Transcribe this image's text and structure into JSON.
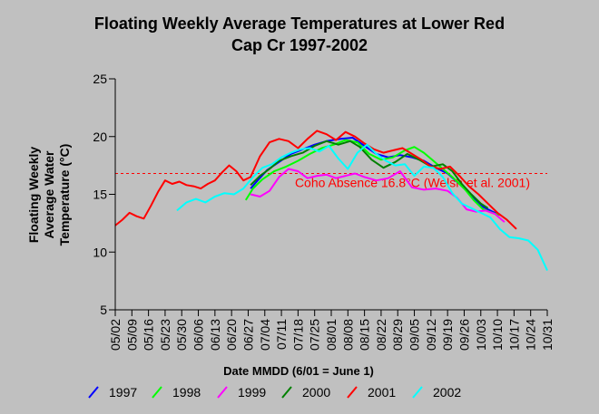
{
  "chart_data": {
    "type": "line",
    "title_lines": [
      "Floating Weekly Average Temperatures at Lower Red",
      "Cap Cr 1997-2002"
    ],
    "ylabel_lines": [
      "Floating Weekly",
      "Average Water",
      "Temperature (°C)"
    ],
    "xlabel": "Date MMDD (6/01 = June 1)",
    "ylim": [
      5,
      25
    ],
    "yticks": [
      5,
      10,
      15,
      20,
      25
    ],
    "x_start_label": "05/02",
    "x_end_label": "10/31",
    "xtick_labels": [
      "05/02",
      "05/09",
      "05/16",
      "05/23",
      "05/30",
      "06/06",
      "06/13",
      "06/20",
      "06/27",
      "07/04",
      "07/11",
      "07/18",
      "07/25",
      "08/01",
      "08/08",
      "08/15",
      "08/22",
      "08/29",
      "09/05",
      "09/12",
      "09/19",
      "09/26",
      "10/03",
      "10/10",
      "10/17",
      "10/24",
      "10/31"
    ],
    "threshold": {
      "value": 16.8,
      "label": "Coho Absence 16.8°C (Welsh et al. 2001)",
      "color": "#ff0000"
    },
    "series": [
      {
        "name": "1997",
        "color": "#0000ff",
        "x": [
          "06/28",
          "07/01",
          "07/05",
          "07/10",
          "07/15",
          "07/20",
          "07/25",
          "07/30",
          "08/05",
          "08/10",
          "08/15",
          "08/20",
          "08/25",
          "08/30",
          "09/04",
          "09/09",
          "09/14",
          "09/19",
          "09/24",
          "09/29",
          "10/04",
          "10/08",
          "10/11"
        ],
        "y": [
          15.5,
          16.2,
          17.1,
          17.8,
          18.5,
          18.9,
          19.3,
          19.6,
          19.8,
          19.9,
          19.2,
          18.5,
          18.2,
          18.4,
          18.2,
          17.9,
          17.3,
          16.8,
          15.9,
          14.9,
          13.9,
          13.5,
          13.2
        ]
      },
      {
        "name": "1998",
        "color": "#00ff00",
        "x": [
          "06/26",
          "06/29",
          "07/03",
          "07/08",
          "07/13",
          "07/18",
          "07/23",
          "07/28",
          "08/02",
          "08/07",
          "08/12",
          "08/17",
          "08/22",
          "08/27",
          "09/01",
          "09/05",
          "09/09",
          "09/13",
          "09/17",
          "09/21",
          "09/26",
          "09/30",
          "10/04",
          "10/08",
          "10/11"
        ],
        "y": [
          14.5,
          15.5,
          16.3,
          17.0,
          17.4,
          17.9,
          18.5,
          19.0,
          19.3,
          19.7,
          19.5,
          18.5,
          18.0,
          18.2,
          18.8,
          19.1,
          18.6,
          17.9,
          17.2,
          16.5,
          15.5,
          14.5,
          13.7,
          13.4,
          13.2
        ]
      },
      {
        "name": "1999",
        "color": "#ff00ff",
        "x": [
          "06/28",
          "07/02",
          "07/06",
          "07/10",
          "07/14",
          "07/18",
          "07/22",
          "07/26",
          "07/30",
          "08/03",
          "08/07",
          "08/11",
          "08/15",
          "08/20",
          "08/25",
          "08/30",
          "09/04",
          "09/09",
          "09/14",
          "09/19",
          "09/23",
          "09/27",
          "10/01",
          "10/05",
          "10/09",
          "10/13"
        ],
        "y": [
          15.0,
          14.8,
          15.3,
          16.5,
          17.2,
          17.0,
          16.4,
          16.6,
          16.7,
          16.4,
          16.6,
          16.8,
          16.5,
          16.2,
          16.4,
          17.0,
          15.6,
          15.4,
          15.5,
          15.3,
          14.7,
          13.7,
          13.5,
          13.6,
          13.3,
          12.6
        ]
      },
      {
        "name": "2000",
        "color": "#008000",
        "x": [
          "06/28",
          "07/02",
          "07/06",
          "07/10",
          "07/15",
          "07/20",
          "07/25",
          "07/30",
          "08/04",
          "08/09",
          "08/13",
          "08/18",
          "08/23",
          "08/28",
          "09/02",
          "09/07",
          "09/12",
          "09/17",
          "09/21",
          "09/25",
          "09/29",
          "10/03",
          "10/06"
        ],
        "y": [
          15.8,
          16.6,
          17.2,
          17.9,
          18.3,
          18.6,
          19.2,
          19.6,
          19.3,
          19.6,
          19.1,
          18.0,
          17.3,
          17.8,
          18.5,
          18.0,
          17.4,
          17.6,
          17.0,
          15.9,
          15.0,
          14.2,
          13.8
        ]
      },
      {
        "name": "2001",
        "color": "#ff0000",
        "x": [
          "05/02",
          "05/05",
          "05/08",
          "05/11",
          "05/14",
          "05/17",
          "05/20",
          "05/23",
          "05/26",
          "05/29",
          "06/01",
          "06/04",
          "06/07",
          "06/10",
          "06/13",
          "06/16",
          "06/19",
          "06/22",
          "06/25",
          "06/28",
          "07/02",
          "07/06",
          "07/10",
          "07/14",
          "07/18",
          "07/22",
          "07/26",
          "07/30",
          "08/03",
          "08/07",
          "08/11",
          "08/15",
          "08/19",
          "08/23",
          "08/27",
          "08/31",
          "09/04",
          "09/08",
          "09/12",
          "09/16",
          "09/20",
          "09/24",
          "09/28",
          "10/02",
          "10/06",
          "10/10",
          "10/14",
          "10/18"
        ],
        "y": [
          12.3,
          12.8,
          13.4,
          13.1,
          12.9,
          14.0,
          15.2,
          16.2,
          15.9,
          16.1,
          15.8,
          15.7,
          15.5,
          15.9,
          16.2,
          16.9,
          17.5,
          17.0,
          16.2,
          16.5,
          18.3,
          19.5,
          19.8,
          19.6,
          19.0,
          19.8,
          20.5,
          20.2,
          19.7,
          20.4,
          20.0,
          19.4,
          18.9,
          18.6,
          18.8,
          19.0,
          18.5,
          18.0,
          17.4,
          17.2,
          17.4,
          16.6,
          15.7,
          15.0,
          14.2,
          13.4,
          12.8,
          12.0
        ]
      },
      {
        "name": "2002",
        "color": "#00ffff",
        "x": [
          "05/28",
          "06/01",
          "06/05",
          "06/09",
          "06/13",
          "06/17",
          "06/21",
          "06/25",
          "06/29",
          "07/03",
          "07/07",
          "07/11",
          "07/15",
          "07/19",
          "07/23",
          "07/27",
          "07/31",
          "08/04",
          "08/08",
          "08/12",
          "08/16",
          "08/20",
          "08/24",
          "08/28",
          "09/01",
          "09/05",
          "09/09",
          "09/13",
          "09/17",
          "09/21",
          "09/25",
          "09/29",
          "10/03",
          "10/07",
          "10/11",
          "10/15",
          "10/19",
          "10/23",
          "10/27",
          "10/31"
        ],
        "y": [
          13.6,
          14.3,
          14.6,
          14.3,
          14.8,
          15.1,
          15.0,
          15.5,
          16.5,
          17.3,
          17.6,
          18.2,
          18.6,
          18.9,
          19.0,
          18.7,
          19.2,
          18.1,
          17.2,
          18.6,
          19.3,
          18.5,
          17.9,
          17.5,
          17.6,
          16.6,
          17.4,
          17.3,
          16.5,
          15.1,
          14.2,
          13.8,
          13.4,
          13.0,
          12.0,
          11.3,
          11.2,
          11.0,
          10.2,
          8.4
        ]
      }
    ]
  }
}
